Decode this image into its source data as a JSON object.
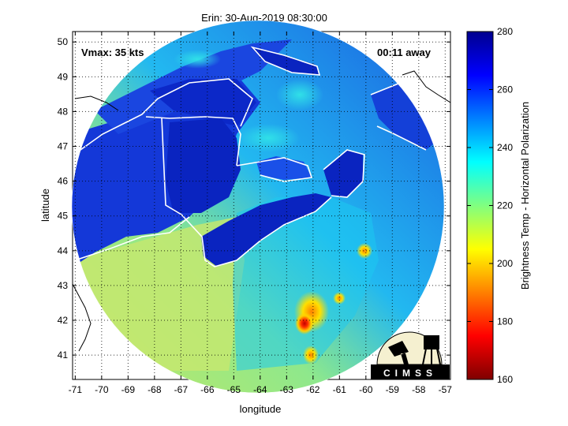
{
  "chart_data": {
    "type": "heatmap",
    "title": "Erin: 30-Aug-2019 08:30:00",
    "xlabel": "longitude",
    "ylabel": "latitude",
    "xlim": [
      -71.1,
      -56.8
    ],
    "ylim": [
      40.3,
      50.3
    ],
    "x_ticks": [
      -71,
      -70,
      -69,
      -68,
      -67,
      -66,
      -65,
      -64,
      -63,
      -62,
      -61,
      -60,
      -59,
      -58,
      -57
    ],
    "y_ticks": [
      41,
      42,
      43,
      44,
      45,
      46,
      47,
      48,
      49,
      50
    ],
    "grid": true,
    "colorbar": {
      "label": "Brightness Temp - Horizontal Polarization",
      "min": 160,
      "max": 280,
      "ticks": [
        160,
        180,
        200,
        220,
        240,
        260,
        280
      ],
      "colormap": [
        "#7f0000",
        "#ff0000",
        "#ff8000",
        "#ffff00",
        "#80ff80",
        "#00ffff",
        "#0080ff",
        "#0000ff",
        "#00008f"
      ]
    },
    "annotations": {
      "vmax": "Vmax: 35 kts",
      "time_away": "00:11 away"
    },
    "swath_center": [
      -64.1,
      45.6
    ],
    "notable_features": [
      {
        "name": "cold core",
        "lon": -62.1,
        "lat": 41.9,
        "value": 170
      },
      {
        "name": "cold cell",
        "lon": -62.0,
        "lat": 42.3,
        "value": 190
      },
      {
        "name": "cold cell",
        "lon": -62.0,
        "lat": 41.0,
        "value": 195
      },
      {
        "name": "cold cell",
        "lon": -60.1,
        "lat": 44.0,
        "value": 205
      }
    ]
  },
  "logo": {
    "text": "CIMSS"
  }
}
